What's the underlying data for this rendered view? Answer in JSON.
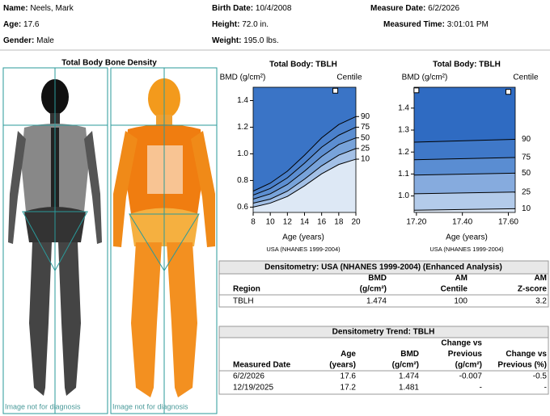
{
  "header": {
    "fields": [
      {
        "label": "Name:",
        "value": "Neels, Mark"
      },
      {
        "label": "Birth Date:",
        "value": "10/4/2008"
      },
      {
        "label": "Measure Date:",
        "value": "6/2/2026"
      },
      {
        "label": "Age:",
        "value": "17.6"
      },
      {
        "label": "Height:",
        "value": "72.0 in."
      },
      {
        "label": "Measured Time:",
        "value": "3:01:01 PM"
      },
      {
        "label": "Gender:",
        "value": "Male"
      },
      {
        "label": "Weight:",
        "value": "195.0 lbs."
      }
    ]
  },
  "image_panel": {
    "title": "Total Body Bone Density",
    "captions": [
      "Image not for diagnosis",
      "Image not for diagnosis"
    ]
  },
  "charts": [
    {
      "title": "Total Body: TBLH",
      "y_label": "BMD (g/cm²)",
      "centile_label": "Centile",
      "x_label": "Age (years)",
      "source": "USA (NHANES 1999-2004)",
      "xlim": [
        8,
        20
      ],
      "ylim": [
        0.56,
        1.5
      ],
      "xticks": [
        8,
        10,
        12,
        14,
        16,
        18,
        20
      ],
      "yticks": [
        {
          "value": 0.6,
          "label": "0.6"
        },
        {
          "value": 0.8,
          "label": "0.8"
        },
        {
          "value": 1.0,
          "label": "1.0"
        },
        {
          "value": 1.2,
          "label": "1.2"
        },
        {
          "value": 1.4,
          "label": "1.4"
        }
      ],
      "color": "#3a74c6",
      "centile_x": [
        8,
        10,
        12,
        14,
        16,
        18,
        20
      ],
      "centiles": [
        {
          "name": "90",
          "color": "#4a80cb",
          "values": [
            0.72,
            0.78,
            0.87,
            0.99,
            1.12,
            1.22,
            1.28
          ]
        },
        {
          "name": "75",
          "color": "#5c8ed1",
          "values": [
            0.69,
            0.74,
            0.82,
            0.93,
            1.05,
            1.14,
            1.2
          ]
        },
        {
          "name": "50",
          "color": "#78a3da",
          "values": [
            0.66,
            0.7,
            0.77,
            0.87,
            0.98,
            1.07,
            1.12
          ]
        },
        {
          "name": "25",
          "color": "#a3c0e6",
          "values": [
            0.63,
            0.66,
            0.72,
            0.81,
            0.91,
            0.99,
            1.04
          ]
        },
        {
          "name": "10",
          "color": "#dde8f5",
          "values": [
            0.6,
            0.63,
            0.68,
            0.76,
            0.85,
            0.92,
            0.96
          ]
        }
      ],
      "points": {
        "x": [
          17.6
        ],
        "y": [
          1.474
        ]
      }
    },
    {
      "title": "Total Body: TBLH",
      "y_label": "BMD (g/cm²)",
      "centile_label": "Centile",
      "x_label": "Age (years)",
      "source": "USA (NHANES 1999-2004)",
      "xlim": [
        17.19,
        17.63
      ],
      "ylim": [
        0.925,
        1.495
      ],
      "xticks": [
        {
          "value": 17.2,
          "label": "17.20"
        },
        {
          "value": 17.4,
          "label": "17.40"
        },
        {
          "value": 17.6,
          "label": "17.60"
        }
      ],
      "yticks": [
        {
          "value": 1.0,
          "label": "1.0"
        },
        1.1,
        1.2,
        1.3,
        1.4
      ],
      "color": "#2f6bc2",
      "centile_x": [
        17.19,
        17.63
      ],
      "centiles": [
        {
          "name": "90",
          "color": "#3f78c8",
          "values": [
            1.245,
            1.258
          ]
        },
        {
          "name": "75",
          "color": "#5a8dd2",
          "values": [
            1.165,
            1.175
          ]
        },
        {
          "name": "50",
          "color": "#86abde",
          "values": [
            1.095,
            1.104
          ]
        },
        {
          "name": "25",
          "color": "#b3cbea",
          "values": [
            1.01,
            1.018
          ]
        },
        {
          "name": "10",
          "color": "#dbe6f4",
          "values": [
            0.935,
            0.942
          ]
        }
      ],
      "points": {
        "x": [
          17.2,
          17.6
        ],
        "y": [
          1.481,
          1.474
        ]
      }
    }
  ],
  "tables": [
    {
      "title": "Densitometry: USA (NHANES 1999-2004) (Enhanced Analysis)",
      "columns": [
        [
          "Region"
        ],
        [
          "BMD",
          "(g/cm²)"
        ],
        [
          "AM",
          "Centile"
        ],
        [
          "AM",
          "Z-score"
        ]
      ],
      "rows": [
        [
          "TBLH",
          "1.474",
          "100",
          "3.2"
        ]
      ]
    },
    {
      "title": "Densitometry Trend: TBLH",
      "columns": [
        [
          "Measured Date"
        ],
        [
          "Age",
          "(years)"
        ],
        [
          "BMD",
          "(g/cm²)"
        ],
        [
          "Change vs",
          "Previous",
          "(g/cm²)"
        ],
        [
          "Change vs",
          "Previous (%)"
        ]
      ],
      "rows": [
        [
          "6/2/2026",
          "17.6",
          "1.474",
          "-0.007",
          "-0.5"
        ],
        [
          "12/19/2025",
          "17.2",
          "1.481",
          "-",
          "-"
        ]
      ]
    }
  ]
}
